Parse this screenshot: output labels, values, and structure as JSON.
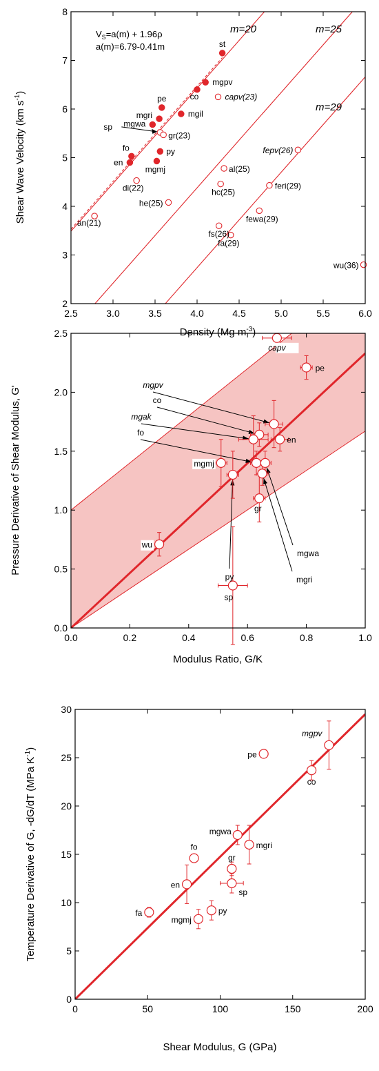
{
  "colors": {
    "accent": "#e0262b",
    "band": "#f6c4c2",
    "axis": "#000000"
  },
  "chart_data": [
    {
      "type": "scatter",
      "xlabel": "Density (Mg m",
      "xlabel_sup": "-3",
      "xlabel_tail": ")",
      "ylabel": "Shear Wave Velocity (km s",
      "ylabel_sup": "-1",
      "ylabel_tail": ")",
      "xlim": [
        2.5,
        6.0
      ],
      "ylim": [
        2,
        8
      ],
      "xticks": [
        "2.5",
        "3.0",
        "3.5",
        "4.0",
        "4.5",
        "5.0",
        "5.5",
        "6.0"
      ],
      "yticks": [
        "2",
        "3",
        "4",
        "5",
        "6",
        "7",
        "8"
      ],
      "equation_1_pre": "V",
      "equation_1_sub": "S",
      "equation_1_post": "=a(m) + 1.96ρ",
      "equation_2": "a(m)=6.79-0.41m",
      "lines": [
        {
          "label": "m=20",
          "m": 20
        },
        {
          "label": "m=25",
          "m": 25
        },
        {
          "label": "m=29",
          "m": 29
        }
      ],
      "points": [
        {
          "label": "st",
          "x": 4.3,
          "y": 7.15,
          "filled": true
        },
        {
          "label": "mgpv",
          "x": 4.1,
          "y": 6.55,
          "filled": true
        },
        {
          "label": "co",
          "x": 4.0,
          "y": 6.4,
          "filled": true
        },
        {
          "label": "capv(23)",
          "x": 4.25,
          "y": 6.25,
          "filled": false,
          "italic": true
        },
        {
          "label": "pe",
          "x": 3.58,
          "y": 6.03,
          "filled": true
        },
        {
          "label": "mgil",
          "x": 3.81,
          "y": 5.9,
          "filled": true
        },
        {
          "label": "mgri",
          "x": 3.55,
          "y": 5.8,
          "filled": true
        },
        {
          "label": "mgwa",
          "x": 3.47,
          "y": 5.68,
          "filled": true
        },
        {
          "label": "sp",
          "x": 3.56,
          "y": 5.52,
          "filled": false
        },
        {
          "label": "gr(23)",
          "x": 3.6,
          "y": 5.47,
          "filled": false
        },
        {
          "label": "py",
          "x": 3.56,
          "y": 5.13,
          "filled": true
        },
        {
          "label": "fo",
          "x": 3.22,
          "y": 5.03,
          "filled": true
        },
        {
          "label": "en",
          "x": 3.2,
          "y": 4.9,
          "filled": true
        },
        {
          "label": "mgmj",
          "x": 3.52,
          "y": 4.93,
          "filled": true
        },
        {
          "label": "di(22)",
          "x": 3.28,
          "y": 4.53,
          "filled": false
        },
        {
          "label": "he(25)",
          "x": 3.66,
          "y": 4.08,
          "filled": false
        },
        {
          "label": "an(21)",
          "x": 2.78,
          "y": 3.8,
          "filled": false
        },
        {
          "label": "al(25)",
          "x": 4.32,
          "y": 4.78,
          "filled": false
        },
        {
          "label": "hc(25)",
          "x": 4.28,
          "y": 4.46,
          "filled": false
        },
        {
          "label": "fs(26)",
          "x": 4.26,
          "y": 3.6,
          "filled": false
        },
        {
          "label": "fa(29)",
          "x": 4.4,
          "y": 3.41,
          "filled": false
        },
        {
          "label": "fewa(29)",
          "x": 4.74,
          "y": 3.91,
          "filled": false
        },
        {
          "label": "feri(29)",
          "x": 4.86,
          "y": 4.43,
          "filled": false
        },
        {
          "label": "fepv(26)",
          "x": 5.2,
          "y": 5.16,
          "filled": false,
          "italic": true
        },
        {
          "label": "wu(36)",
          "x": 5.98,
          "y": 2.8,
          "filled": false
        }
      ]
    },
    {
      "type": "scatter",
      "xlabel": "Modulus Ratio, G/K",
      "ylabel": "Pressure Derivative of Shear Modulus, G'",
      "xlim": [
        0.0,
        1.0
      ],
      "ylim": [
        0.0,
        2.5
      ],
      "xticks": [
        "0.0",
        "0.2",
        "0.4",
        "0.6",
        "0.8",
        "1.0"
      ],
      "yticks": [
        "0.0",
        "0.5",
        "1.0",
        "1.5",
        "2.0",
        "2.5"
      ],
      "fit_line": {
        "slope": 2.33,
        "intercept": 0.0
      },
      "band": {
        "upper_intercept": 1.0,
        "upper_slope": 2.0,
        "lower_slope": 1.67
      },
      "points": [
        {
          "label": "capv",
          "x": 0.7,
          "y": 2.46,
          "xerr": 0.05,
          "yerr": 0.0,
          "italic": true
        },
        {
          "label": "pe",
          "x": 0.8,
          "y": 2.21,
          "xerr": 0.02,
          "yerr": 0.1
        },
        {
          "label": "mgpv",
          "x": 0.69,
          "y": 1.73,
          "xerr": 0.03,
          "yerr": 0.2,
          "italic": true
        },
        {
          "label": "co",
          "x": 0.64,
          "y": 1.64,
          "xerr": 0.03,
          "yerr": 0.1
        },
        {
          "label": "mgak",
          "x": 0.62,
          "y": 1.6,
          "xerr": 0.05,
          "yerr": 0.2,
          "italic": true
        },
        {
          "label": "en",
          "x": 0.71,
          "y": 1.6,
          "xerr": 0.03,
          "yerr": 0.1
        },
        {
          "label": "fo",
          "x": 0.63,
          "y": 1.4,
          "xerr": 0.02,
          "yerr": 0.1
        },
        {
          "label": "mgmj",
          "x": 0.51,
          "y": 1.4,
          "xerr": 0.02,
          "yerr": 0.2
        },
        {
          "label": "mgwa",
          "x": 0.66,
          "y": 1.4,
          "xerr": 0.02,
          "yerr": 0.1
        },
        {
          "label": "mgri",
          "x": 0.65,
          "y": 1.31,
          "xerr": 0.02,
          "yerr": 0.1
        },
        {
          "label": "py",
          "x": 0.55,
          "y": 1.3,
          "xerr": 0.02,
          "yerr": 0.2
        },
        {
          "label": "gr",
          "x": 0.64,
          "y": 1.1,
          "xerr": 0.02,
          "yerr": 0.2
        },
        {
          "label": "wu",
          "x": 0.3,
          "y": 0.71,
          "xerr": 0.01,
          "yerr": 0.1
        },
        {
          "label": "sp",
          "x": 0.55,
          "y": 0.36,
          "xerr": 0.05,
          "yerr": 0.5
        }
      ]
    },
    {
      "type": "scatter",
      "xlabel": "Shear Modulus, G (GPa)",
      "ylabel": "Temperature Derivative of G, -dG/dT (MPa K",
      "ylabel_sup": "-1",
      "ylabel_tail": ")",
      "xlim": [
        0,
        200
      ],
      "ylim": [
        0,
        30
      ],
      "xticks": [
        "0",
        "50",
        "100",
        "150",
        "200"
      ],
      "yticks": [
        "0",
        "5",
        "10",
        "15",
        "20",
        "25",
        "30"
      ],
      "fit_line": {
        "slope": 0.1475,
        "intercept": 0.0
      },
      "points": [
        {
          "label": "mgpv",
          "x": 175,
          "y": 26.3,
          "xerr": 0,
          "yerr": 2.5,
          "italic": true
        },
        {
          "label": "pe",
          "x": 130,
          "y": 25.4,
          "xerr": 2,
          "yerr": 0.3
        },
        {
          "label": "co",
          "x": 163,
          "y": 23.7,
          "xerr": 0,
          "yerr": 1.0
        },
        {
          "label": "mgwa",
          "x": 112,
          "y": 17.0,
          "xerr": 0,
          "yerr": 1.0
        },
        {
          "label": "mgri",
          "x": 120,
          "y": 16.0,
          "xerr": 0,
          "yerr": 2.0
        },
        {
          "label": "fo",
          "x": 82,
          "y": 14.6,
          "xerr": 0,
          "yerr": 0.3
        },
        {
          "label": "gr",
          "x": 108,
          "y": 13.5,
          "xerr": 0,
          "yerr": 0.7
        },
        {
          "label": "sp",
          "x": 108,
          "y": 12.0,
          "xerr": 8,
          "yerr": 1.0
        },
        {
          "label": "en",
          "x": 77,
          "y": 11.9,
          "xerr": 0,
          "yerr": 2.0
        },
        {
          "label": "py",
          "x": 94,
          "y": 9.2,
          "xerr": 0,
          "yerr": 1.0
        },
        {
          "label": "fa",
          "x": 51,
          "y": 9.0,
          "xerr": 0,
          "yerr": 0.5
        },
        {
          "label": "mgmj",
          "x": 85,
          "y": 8.3,
          "xerr": 0,
          "yerr": 1.0
        }
      ]
    }
  ]
}
